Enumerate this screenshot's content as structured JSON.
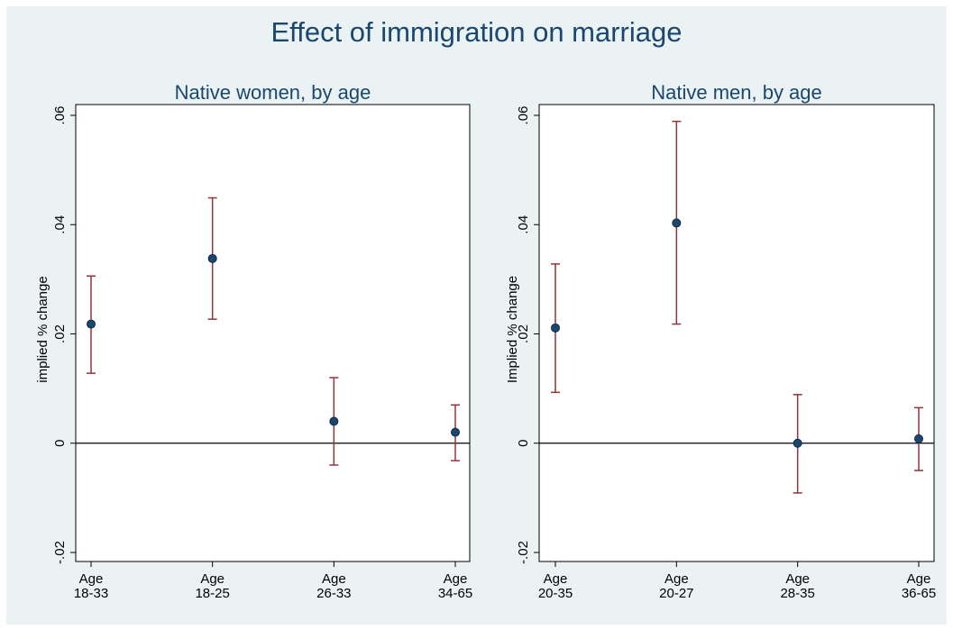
{
  "figure": {
    "title": "Effect of immigration on marriage",
    "marker_color": "#1a476f",
    "ci_color": "#90353b",
    "title_color": "#1a476f",
    "background": "#eaf2f3",
    "plot_background": "#ffffff"
  },
  "chart_data": [
    {
      "type": "scatter",
      "title": "Native women, by age",
      "xlabel": "",
      "ylabel": "implied % change",
      "ylim": [
        -0.02,
        0.06
      ],
      "yticks": [
        "-.02",
        "0",
        ".02",
        ".04",
        ".06"
      ],
      "ytick_values": [
        -0.02,
        0,
        0.02,
        0.04,
        0.06
      ],
      "categories": [
        [
          "Age",
          "18-33"
        ],
        [
          "Age",
          "18-25"
        ],
        [
          "Age",
          "26-33"
        ],
        [
          "Age",
          "34-65"
        ]
      ],
      "values": [
        0.0218,
        0.0338,
        0.004,
        0.002
      ],
      "ci_low": [
        0.0128,
        0.0227,
        -0.004,
        -0.0032
      ],
      "ci_high": [
        0.0306,
        0.0449,
        0.012,
        0.007
      ],
      "reference_line": 0,
      "grid": false
    },
    {
      "type": "scatter",
      "title": "Native men, by age",
      "xlabel": "",
      "ylabel": "Implied % change",
      "ylim": [
        -0.02,
        0.06
      ],
      "yticks": [
        "-.02",
        "0",
        ".02",
        ".04",
        ".06"
      ],
      "ytick_values": [
        -0.02,
        0,
        0.02,
        0.04,
        0.06
      ],
      "categories": [
        [
          "Age",
          "20-35"
        ],
        [
          "Age",
          "20-27"
        ],
        [
          "Age",
          "28-35"
        ],
        [
          "Age",
          "36-65"
        ]
      ],
      "values": [
        0.0211,
        0.0403,
        0.0,
        0.0008
      ],
      "ci_low": [
        0.0093,
        0.0218,
        -0.0091,
        -0.005
      ],
      "ci_high": [
        0.0328,
        0.0589,
        0.0089,
        0.0065
      ],
      "reference_line": 0,
      "grid": false
    }
  ]
}
